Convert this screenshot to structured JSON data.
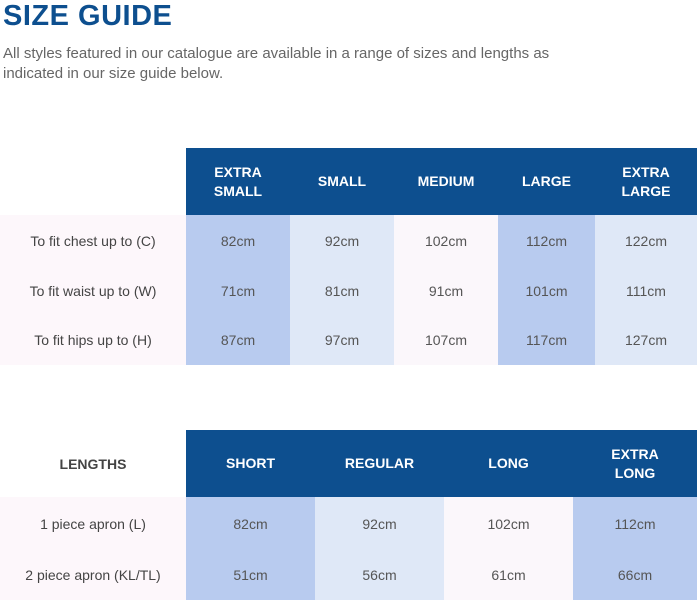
{
  "title": "SIZE GUIDE",
  "intro": "All styles featured in our catalogue are available in a range of sizes and lengths as indicated in our size guide below.",
  "sizes_table": {
    "headers": [
      "EXTRA\nSMALL",
      "SMALL",
      "MEDIUM",
      "LARGE",
      "EXTRA\nLARGE"
    ],
    "rows": [
      {
        "label": "To fit chest up to (C)",
        "values": [
          "82cm",
          "92cm",
          "102cm",
          "112cm",
          "122cm"
        ]
      },
      {
        "label": "To fit waist up to (W)",
        "values": [
          "71cm",
          "81cm",
          "91cm",
          "101cm",
          "111cm"
        ]
      },
      {
        "label": "To fit hips up to (H)",
        "values": [
          "87cm",
          "97cm",
          "107cm",
          "117cm",
          "127cm"
        ]
      }
    ]
  },
  "lengths_table": {
    "corner": "LENGTHS",
    "headers": [
      "SHORT",
      "REGULAR",
      "LONG",
      "EXTRA\nLONG"
    ],
    "rows": [
      {
        "label": "1 piece apron (L)",
        "values": [
          "82cm",
          "92cm",
          "102cm",
          "112cm"
        ]
      },
      {
        "label": "2 piece apron (KL/TL)",
        "values": [
          "51cm",
          "56cm",
          "61cm",
          "66cm"
        ]
      }
    ]
  }
}
